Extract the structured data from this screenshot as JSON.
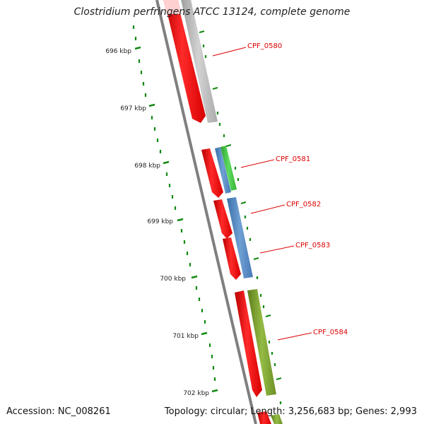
{
  "title": "Clostridium perfringens ATCC 13124, complete genome",
  "footer": {
    "accession": "Accession: NC_008261",
    "summary": "Topology: circular; Length: 3,256,683 bp; Genes: 2,993"
  },
  "ruler": {
    "unit": "kbp",
    "labels": [
      "696 kbp",
      "697 kbp",
      "698 kbp",
      "699 kbp",
      "700 kbp",
      "701 kbp",
      "702 kbp"
    ],
    "color": "#138a13"
  },
  "gene_labels": [
    "CPF_0580",
    "CPF_0581",
    "CPF_0582",
    "CPF_0583",
    "CPF_0584"
  ],
  "colors": {
    "backbone": "#808080",
    "cds_strand": "#ff1a1a",
    "label_text": "#dd0000",
    "feature_grey": "#bdbdbd",
    "feature_green": "#44cc44",
    "feature_blue": "#4f86c0",
    "feature_olive": "#7a9e2e"
  }
}
